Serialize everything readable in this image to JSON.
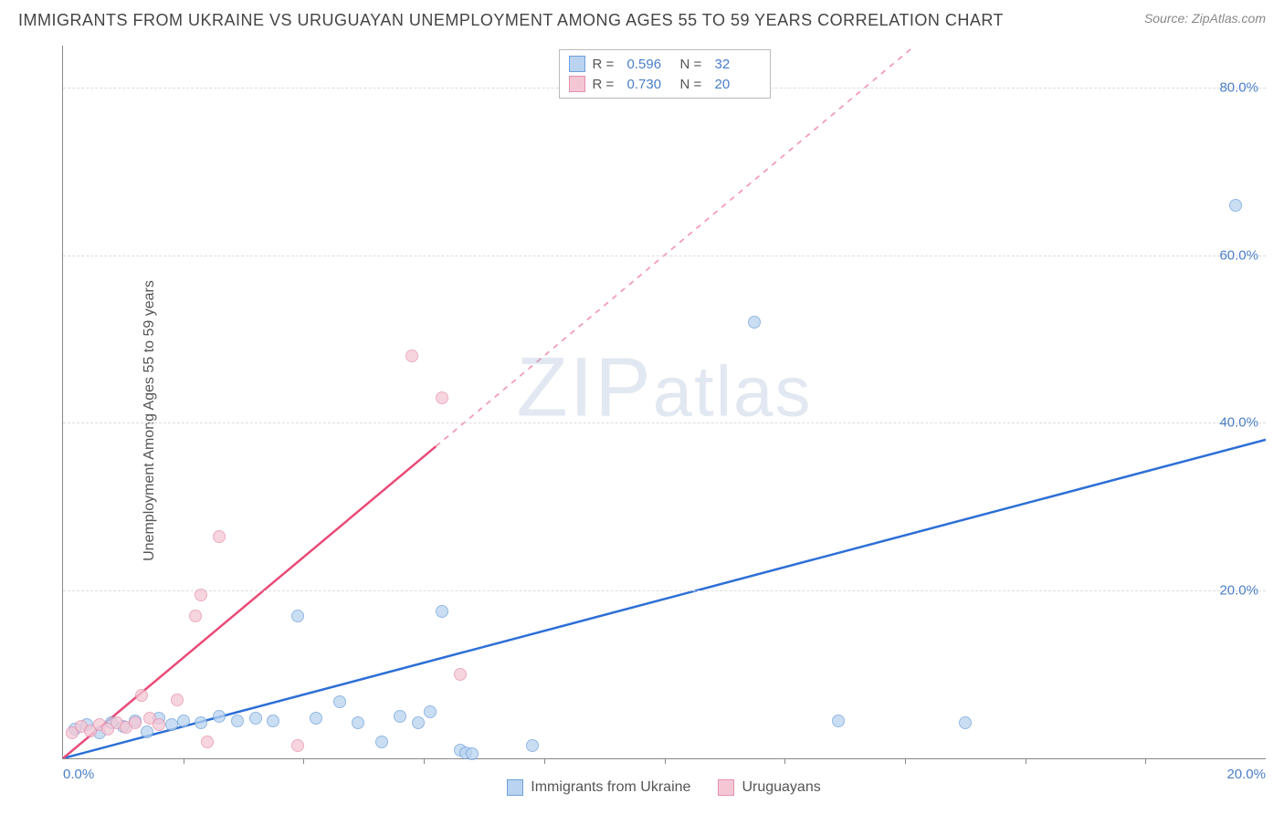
{
  "title": "IMMIGRANTS FROM UKRAINE VS URUGUAYAN UNEMPLOYMENT AMONG AGES 55 TO 59 YEARS CORRELATION CHART",
  "source": "Source: ZipAtlas.com",
  "watermark": "ZIPatlas",
  "chart": {
    "type": "scatter",
    "ylabel": "Unemployment Among Ages 55 to 59 years",
    "xlim": [
      0,
      20
    ],
    "ylim": [
      0,
      85
    ],
    "xtick_left": "0.0%",
    "xtick_right": "20.0%",
    "yticks": [
      {
        "v": 20,
        "label": "20.0%"
      },
      {
        "v": 40,
        "label": "40.0%"
      },
      {
        "v": 60,
        "label": "60.0%"
      },
      {
        "v": 80,
        "label": "80.0%"
      }
    ],
    "x_minor_ticks": [
      2,
      4,
      6,
      8,
      10,
      12,
      14,
      16,
      18
    ],
    "grid_color": "#dddddd",
    "axis_color": "#888888",
    "background_color": "#ffffff",
    "tick_label_color": "#4a7ec9",
    "label_fontsize": 16,
    "tick_fontsize": 15,
    "series": [
      {
        "name": "Immigrants from Ukraine",
        "color_fill": "#b9d3f0",
        "color_stroke": "#6fa1d9",
        "marker": "circle",
        "marker_size": 14,
        "marker_opacity": 0.75,
        "trend": {
          "slope": 1.9,
          "intercept": 0,
          "color": "#2c6fd6",
          "width": 2.5,
          "dash_after_x": 20
        },
        "R": 0.596,
        "N": 32,
        "points": [
          {
            "x": 0.2,
            "y": 3.5
          },
          {
            "x": 0.4,
            "y": 4.0
          },
          {
            "x": 0.6,
            "y": 3.0
          },
          {
            "x": 0.8,
            "y": 4.2
          },
          {
            "x": 1.0,
            "y": 3.8
          },
          {
            "x": 1.2,
            "y": 4.5
          },
          {
            "x": 1.4,
            "y": 3.2
          },
          {
            "x": 1.6,
            "y": 4.8
          },
          {
            "x": 1.8,
            "y": 4.0
          },
          {
            "x": 2.0,
            "y": 4.5
          },
          {
            "x": 2.3,
            "y": 4.2
          },
          {
            "x": 2.6,
            "y": 5.0
          },
          {
            "x": 2.9,
            "y": 4.5
          },
          {
            "x": 3.2,
            "y": 4.8
          },
          {
            "x": 3.5,
            "y": 4.5
          },
          {
            "x": 3.9,
            "y": 17.0
          },
          {
            "x": 4.2,
            "y": 4.8
          },
          {
            "x": 4.6,
            "y": 6.8
          },
          {
            "x": 4.9,
            "y": 4.2
          },
          {
            "x": 5.3,
            "y": 2.0
          },
          {
            "x": 5.6,
            "y": 5.0
          },
          {
            "x": 5.9,
            "y": 4.2
          },
          {
            "x": 6.1,
            "y": 5.5
          },
          {
            "x": 6.3,
            "y": 17.5
          },
          {
            "x": 6.6,
            "y": 1.0
          },
          {
            "x": 6.7,
            "y": 0.7
          },
          {
            "x": 6.8,
            "y": 0.5
          },
          {
            "x": 7.8,
            "y": 1.5
          },
          {
            "x": 11.5,
            "y": 52.0
          },
          {
            "x": 12.9,
            "y": 4.5
          },
          {
            "x": 15.0,
            "y": 4.2
          },
          {
            "x": 19.5,
            "y": 66.0
          }
        ]
      },
      {
        "name": "Uruguayans",
        "color_fill": "#f5c7d5",
        "color_stroke": "#e590ac",
        "marker": "circle",
        "marker_size": 14,
        "marker_opacity": 0.75,
        "trend": {
          "slope": 6.0,
          "intercept": 0,
          "color": "#e94b77",
          "width": 2.5,
          "dash_after_x": 6.2
        },
        "R": 0.73,
        "N": 20,
        "points": [
          {
            "x": 0.15,
            "y": 3.0
          },
          {
            "x": 0.3,
            "y": 3.8
          },
          {
            "x": 0.45,
            "y": 3.3
          },
          {
            "x": 0.6,
            "y": 4.0
          },
          {
            "x": 0.75,
            "y": 3.5
          },
          {
            "x": 0.9,
            "y": 4.2
          },
          {
            "x": 1.05,
            "y": 3.7
          },
          {
            "x": 1.2,
            "y": 4.3
          },
          {
            "x": 1.3,
            "y": 7.5
          },
          {
            "x": 1.45,
            "y": 4.8
          },
          {
            "x": 1.6,
            "y": 4.0
          },
          {
            "x": 1.9,
            "y": 7.0
          },
          {
            "x": 2.2,
            "y": 17.0
          },
          {
            "x": 2.3,
            "y": 19.5
          },
          {
            "x": 2.4,
            "y": 2.0
          },
          {
            "x": 2.6,
            "y": 26.5
          },
          {
            "x": 3.9,
            "y": 1.5
          },
          {
            "x": 5.8,
            "y": 48.0
          },
          {
            "x": 6.3,
            "y": 43.0
          },
          {
            "x": 6.6,
            "y": 10.0
          }
        ]
      }
    ],
    "legend_bottom": [
      {
        "label": "Immigrants from Ukraine",
        "fill": "#b9d3f0",
        "stroke": "#6fa1d9"
      },
      {
        "label": "Uruguayans",
        "fill": "#f5c7d5",
        "stroke": "#e590ac"
      }
    ]
  }
}
